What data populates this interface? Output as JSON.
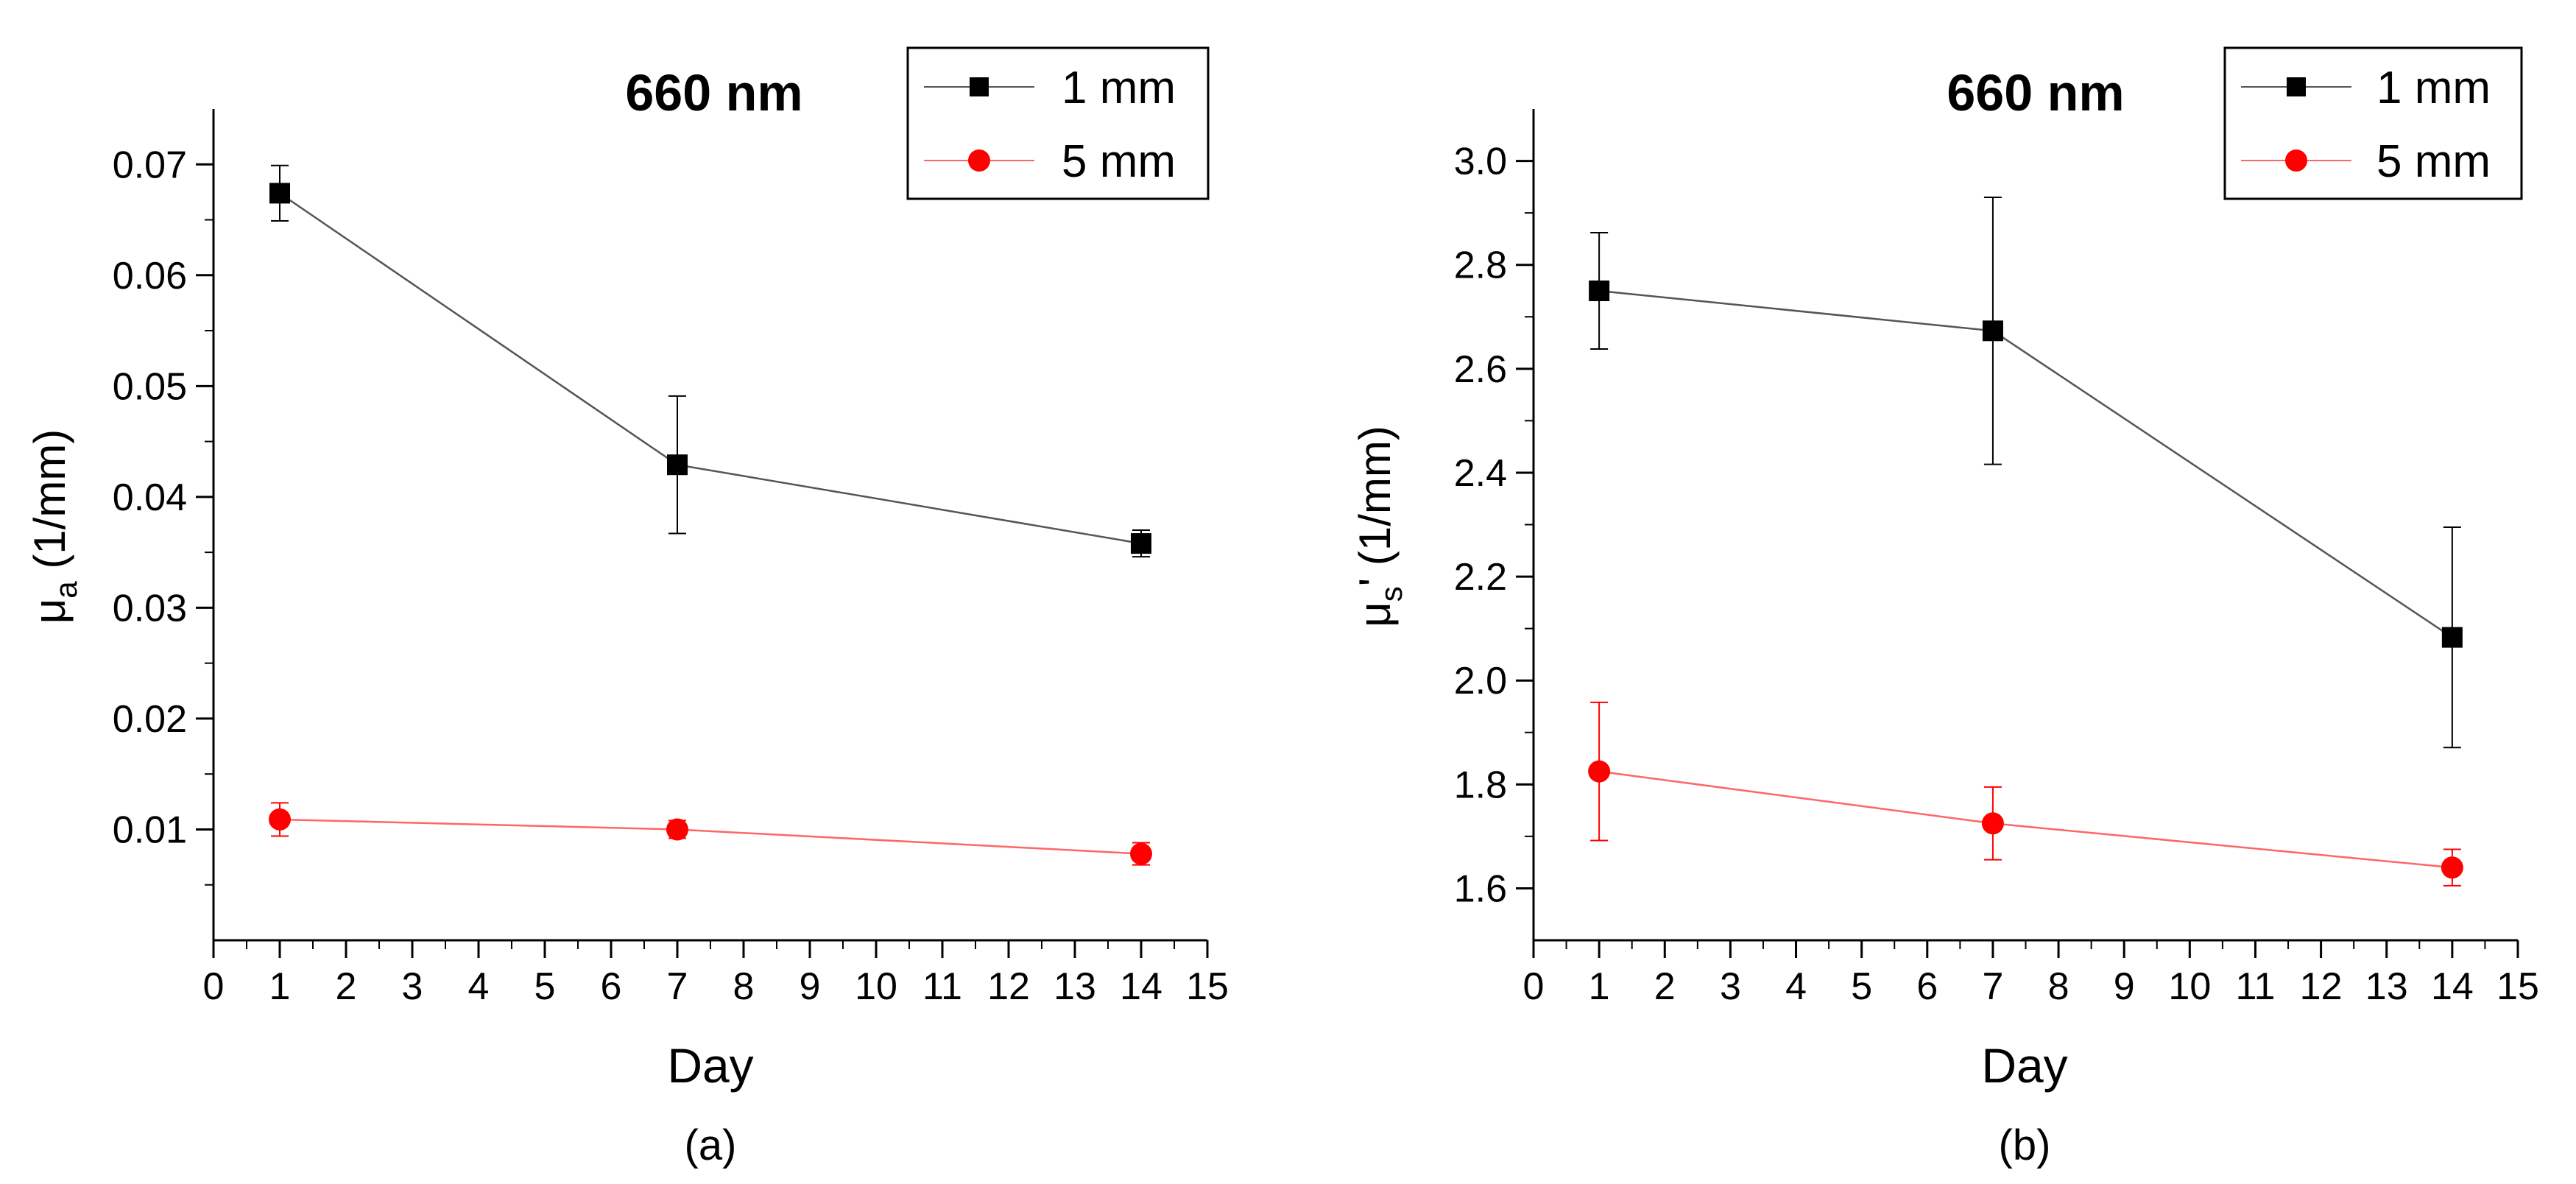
{
  "chart_data": [
    {
      "type": "line",
      "panel_label": "(a)",
      "title": "660 nm",
      "xlabel": "Day",
      "ylabel": {
        "symbol": "μ",
        "subscript": "a",
        "suffix": " (1/mm)"
      },
      "xlim": [
        0,
        15
      ],
      "ylim": [
        0.0,
        0.075
      ],
      "x_ticks": [
        0,
        1,
        2,
        3,
        4,
        5,
        6,
        7,
        8,
        9,
        10,
        11,
        12,
        13,
        14,
        15
      ],
      "x_tick_labels": [
        "0",
        "1",
        "2",
        "3",
        "4",
        "5",
        "6",
        "7",
        "8",
        "9",
        "10",
        "11",
        "12",
        "13",
        "14",
        "15"
      ],
      "y_ticks": [
        0.01,
        0.02,
        0.03,
        0.04,
        0.05,
        0.06,
        0.07
      ],
      "y_tick_labels": [
        "0.01",
        "0.02",
        "0.03",
        "0.04",
        "0.05",
        "0.06",
        "0.07"
      ],
      "legend_position": "top-right",
      "series": [
        {
          "name": "1 mm",
          "color": "#000000",
          "marker": "square",
          "line_color": "#555555",
          "x": [
            1,
            7,
            14
          ],
          "y": [
            0.0674,
            0.0429,
            0.0358
          ],
          "err": [
            0.0025,
            0.0062,
            0.0012
          ]
        },
        {
          "name": "5 mm",
          "color": "#ff0000",
          "marker": "circle",
          "line_color": "#ff6666",
          "x": [
            1,
            7,
            14
          ],
          "y": [
            0.0109,
            0.01,
            0.0078
          ],
          "err": [
            0.0015,
            0.0008,
            0.001
          ]
        }
      ]
    },
    {
      "type": "line",
      "panel_label": "(b)",
      "title": "660 nm",
      "xlabel": "Day",
      "ylabel": {
        "symbol": "μ",
        "subscript": "s",
        "suffix": "' (1/mm)"
      },
      "xlim": [
        0,
        15
      ],
      "ylim": [
        1.5,
        3.1
      ],
      "x_ticks": [
        0,
        1,
        2,
        3,
        4,
        5,
        6,
        7,
        8,
        9,
        10,
        11,
        12,
        13,
        14,
        15
      ],
      "x_tick_labels": [
        "0",
        "1",
        "2",
        "3",
        "4",
        "5",
        "6",
        "7",
        "8",
        "9",
        "10",
        "11",
        "12",
        "13",
        "14",
        "15"
      ],
      "y_ticks": [
        1.6,
        1.8,
        2.0,
        2.2,
        2.4,
        2.6,
        2.8,
        3.0
      ],
      "y_tick_labels": [
        "1.6",
        "1.8",
        "2.0",
        "2.2",
        "2.4",
        "2.6",
        "2.8",
        "3.0"
      ],
      "legend_position": "top-right",
      "series": [
        {
          "name": "1 mm",
          "color": "#000000",
          "marker": "square",
          "line_color": "#555555",
          "x": [
            1,
            7,
            14
          ],
          "y": [
            2.75,
            2.673,
            2.083
          ],
          "err": [
            0.112,
            0.257,
            0.212
          ]
        },
        {
          "name": "5 mm",
          "color": "#ff0000",
          "marker": "circle",
          "line_color": "#ff6666",
          "x": [
            1,
            7,
            14
          ],
          "y": [
            1.825,
            1.725,
            1.64
          ],
          "err": [
            0.133,
            0.07,
            0.035
          ]
        }
      ]
    }
  ]
}
